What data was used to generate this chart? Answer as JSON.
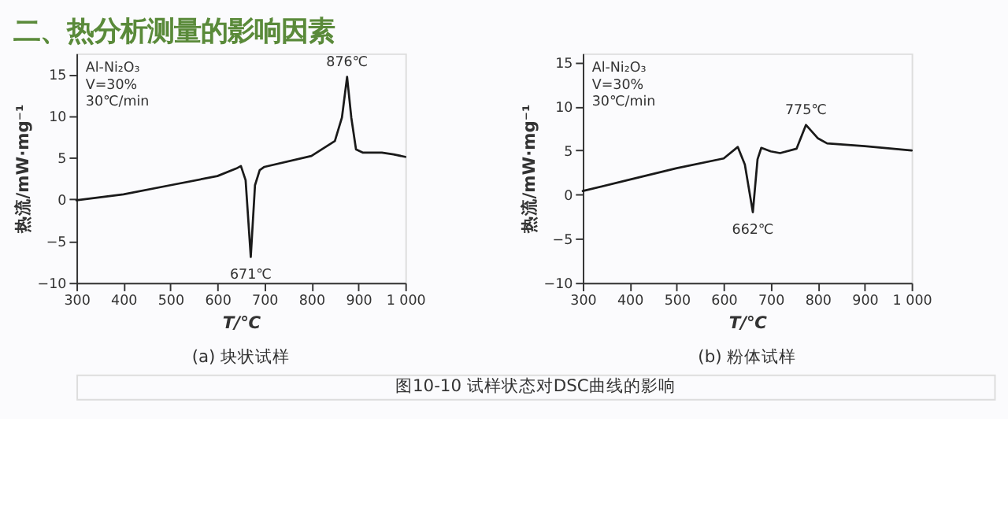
{
  "chart_data": [
    {
      "type": "line",
      "title": "(a) 块状试样",
      "xlabel": "T/℃",
      "ylabel": "热流/mW·mg⁻¹",
      "annotations": [
        "二、热分析测量的影响因素",
        "图10-10 试样状态对DSC曲线的影响",
        "Al-Ni₂O₃",
        "V=30%",
        "30℃/min",
        {
          "text": "876℃",
          "x": 876,
          "y": 14.7
        },
        {
          "text": "671℃",
          "x": 671,
          "y": -6.9
        }
      ],
      "x": [
        300,
        400,
        500,
        600,
        640,
        650,
        660,
        671,
        680,
        690,
        700,
        800,
        850,
        865,
        876,
        885,
        895,
        910,
        950,
        975,
        1000
      ],
      "series": [
        {
          "color": "#1a1a1a",
          "values": [
            -0.1,
            0.6,
            1.7,
            2.8,
            3.7,
            4.0,
            2.3,
            -6.9,
            1.7,
            3.5,
            3.9,
            5.2,
            7.0,
            9.8,
            14.7,
            9.8,
            6.0,
            5.6,
            5.6,
            5.4,
            5.1
          ]
        }
      ],
      "xlim": [
        300,
        1000
      ],
      "ylim": [
        -10,
        17.5
      ],
      "xticks": [
        300,
        400,
        500,
        600,
        700,
        800,
        900,
        {
          "value": 1000,
          "label": "1 000"
        }
      ],
      "yticks": [
        -10,
        -5,
        0,
        5,
        10,
        15
      ],
      "grid": false,
      "line_style": "solid",
      "marker": "none"
    },
    {
      "type": "line",
      "title": "(b) 粉体试样",
      "xlabel": "T/℃",
      "ylabel": "热流/mW·mg⁻¹",
      "annotations": [
        "Al-Ni₂O₃",
        "V=30%",
        "30℃/min",
        {
          "text": "775℃",
          "x": 775,
          "y": 7.9
        },
        {
          "text": "662℃",
          "x": 662,
          "y": -2.0
        }
      ],
      "x": [
        300,
        400,
        500,
        600,
        630,
        645,
        662,
        672,
        680,
        700,
        720,
        755,
        775,
        800,
        820,
        900,
        1000
      ],
      "series": [
        {
          "color": "#1a1a1a",
          "values": [
            0.4,
            1.7,
            3.0,
            4.1,
            5.4,
            3.4,
            -2.0,
            4.0,
            5.3,
            4.9,
            4.7,
            5.2,
            7.9,
            6.4,
            5.8,
            5.5,
            5.0
          ]
        }
      ],
      "xlim": [
        300,
        1000
      ],
      "ylim": [
        -10,
        16
      ],
      "xticks": [
        300,
        400,
        500,
        600,
        700,
        800,
        900,
        {
          "value": 1000,
          "label": "1 000"
        }
      ],
      "yticks": [
        -10,
        -5,
        0,
        5,
        10,
        15
      ],
      "grid": false,
      "line_style": "solid",
      "marker": "none"
    }
  ]
}
